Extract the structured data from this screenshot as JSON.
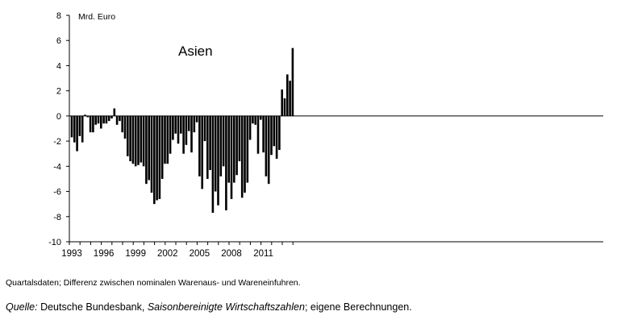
{
  "chart_data": {
    "type": "bar",
    "title": "",
    "panel_label": "Asien",
    "unit_label": "Mrd. Euro",
    "xlabel": "",
    "ylabel": "",
    "ylim": [
      -10,
      8
    ],
    "yticks": [
      8,
      6,
      4,
      2,
      0,
      -2,
      -4,
      -6,
      -8,
      -10
    ],
    "ytick_labels": [
      "8",
      "6",
      "4",
      "2",
      "0",
      "-2",
      "-4",
      "-6",
      "-8",
      "-10"
    ],
    "x_start_year": 1993,
    "periods_per_year": 4,
    "xtick_labels": [
      "1993",
      "1996",
      "1999",
      "2002",
      "2005",
      "2008",
      "2011"
    ],
    "bar_color": "#000000",
    "grid": false,
    "values": [
      -1.7,
      -2.1,
      -2.8,
      -1.6,
      -2.1,
      0.1,
      -0.1,
      -1.3,
      -1.3,
      -0.7,
      -0.6,
      -1.0,
      -0.6,
      -0.6,
      -0.4,
      -0.2,
      0.6,
      -0.7,
      -0.4,
      -1.3,
      -1.8,
      -3.2,
      -3.6,
      -3.8,
      -4.0,
      -3.9,
      -3.7,
      -4.0,
      -5.4,
      -5.1,
      -6.1,
      -7.0,
      -6.7,
      -6.6,
      -5.0,
      -3.8,
      -3.8,
      -3.0,
      -1.9,
      -1.4,
      -2.2,
      -1.4,
      -3.0,
      -2.3,
      -1.2,
      -2.9,
      -1.3,
      -0.5,
      -4.8,
      -5.8,
      -2.0,
      -5.0,
      -4.3,
      -7.7,
      -6.0,
      -7.1,
      -4.8,
      -4.0,
      -7.5,
      -5.3,
      -6.6,
      -5.3,
      -4.7,
      -3.6,
      -6.5,
      -6.1,
      -5.3,
      -1.9,
      -0.6,
      -0.7,
      -3.0,
      -0.3,
      -2.9,
      -4.8,
      -5.4,
      -3.1,
      -2.4,
      -3.4,
      -2.7,
      2.1,
      1.4,
      3.3,
      2.8,
      5.4
    ]
  },
  "notes": {
    "quarterly_note": "Quartalsdaten; Differenz zwischen nominalen Warenaus- und Wareneinfuhren.",
    "source_label": "Quelle:",
    "source_text_1": " Deutsche Bundesbank, ",
    "source_italic": "Saisonbereinigte Wirtschaftszahlen",
    "source_text_2": "; eigene Berechnungen."
  }
}
